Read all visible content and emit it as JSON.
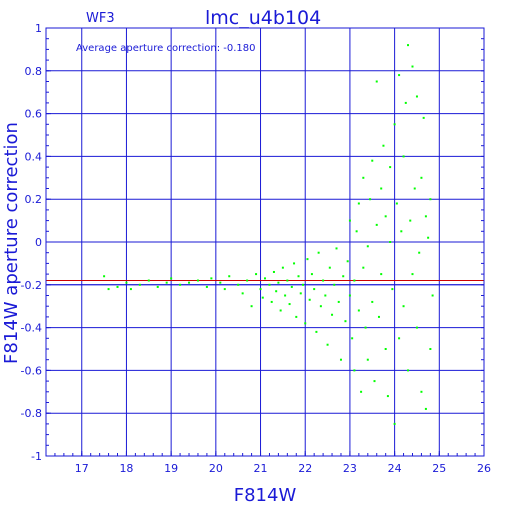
{
  "chart_data": {
    "type": "scatter",
    "title": "lmc_u4b104",
    "chip_label": "WF3",
    "annotation": "Average aperture correction:  -0.180",
    "xlabel": "F814W",
    "ylabel": "F814W aperture correction",
    "xlim": [
      16.2,
      26
    ],
    "ylim": [
      -1,
      1
    ],
    "xticks": [
      "17",
      "18",
      "19",
      "20",
      "21",
      "22",
      "23",
      "24",
      "25",
      "26"
    ],
    "yticks": [
      "-1",
      "-0.8",
      "-0.6",
      "-0.4",
      "-0.2",
      "0",
      "0.2",
      "0.4",
      "0.6",
      "0.8",
      "1"
    ],
    "grid": true,
    "reference_lines": [
      {
        "y": -0.18,
        "color": "#cc0000"
      },
      {
        "y": -0.2,
        "color": "#1a1ad6"
      }
    ],
    "colors": {
      "axis": "#1a1ad6",
      "points": "#00ff00",
      "average_line": "#cc0000"
    },
    "series": [
      {
        "points": [
          [
            17.5,
            -0.16
          ],
          [
            17.6,
            -0.22
          ],
          [
            17.8,
            -0.21
          ],
          [
            18.0,
            -0.19
          ],
          [
            18.1,
            -0.22
          ],
          [
            18.3,
            -0.2
          ],
          [
            18.5,
            -0.18
          ],
          [
            18.7,
            -0.21
          ],
          [
            18.9,
            -0.19
          ],
          [
            19.0,
            -0.17
          ],
          [
            19.2,
            -0.2
          ],
          [
            19.4,
            -0.19
          ],
          [
            19.6,
            -0.18
          ],
          [
            19.8,
            -0.21
          ],
          [
            19.9,
            -0.17
          ],
          [
            20.1,
            -0.19
          ],
          [
            20.2,
            -0.22
          ],
          [
            20.3,
            -0.16
          ],
          [
            20.5,
            -0.2
          ],
          [
            20.6,
            -0.24
          ],
          [
            20.7,
            -0.18
          ],
          [
            20.8,
            -0.3
          ],
          [
            20.9,
            -0.15
          ],
          [
            21.0,
            -0.22
          ],
          [
            21.05,
            -0.26
          ],
          [
            21.1,
            -0.17
          ],
          [
            21.2,
            -0.2
          ],
          [
            21.25,
            -0.28
          ],
          [
            21.3,
            -0.14
          ],
          [
            21.35,
            -0.23
          ],
          [
            21.4,
            -0.19
          ],
          [
            21.45,
            -0.32
          ],
          [
            21.5,
            -0.12
          ],
          [
            21.55,
            -0.25
          ],
          [
            21.6,
            -0.18
          ],
          [
            21.65,
            -0.29
          ],
          [
            21.7,
            -0.21
          ],
          [
            21.75,
            -0.1
          ],
          [
            21.8,
            -0.35
          ],
          [
            21.85,
            -0.16
          ],
          [
            21.9,
            -0.24
          ],
          [
            21.95,
            -0.2
          ],
          [
            22.0,
            -0.38
          ],
          [
            22.05,
            -0.08
          ],
          [
            22.1,
            -0.27
          ],
          [
            22.15,
            -0.15
          ],
          [
            22.2,
            -0.22
          ],
          [
            22.25,
            -0.42
          ],
          [
            22.3,
            -0.05
          ],
          [
            22.35,
            -0.3
          ],
          [
            22.4,
            -0.18
          ],
          [
            22.45,
            -0.25
          ],
          [
            22.5,
            -0.48
          ],
          [
            22.55,
            -0.12
          ],
          [
            22.6,
            -0.34
          ],
          [
            22.65,
            -0.2
          ],
          [
            22.7,
            -0.03
          ],
          [
            22.75,
            -0.28
          ],
          [
            22.8,
            -0.55
          ],
          [
            22.85,
            -0.16
          ],
          [
            22.9,
            -0.37
          ],
          [
            22.95,
            -0.09
          ],
          [
            23.0,
            -0.25
          ],
          [
            23.0,
            0.1
          ],
          [
            23.05,
            -0.45
          ],
          [
            23.1,
            -0.6
          ],
          [
            23.1,
            -0.18
          ],
          [
            23.15,
            0.05
          ],
          [
            23.2,
            -0.32
          ],
          [
            23.2,
            0.18
          ],
          [
            23.25,
            -0.7
          ],
          [
            23.3,
            -0.12
          ],
          [
            23.3,
            0.3
          ],
          [
            23.35,
            -0.4
          ],
          [
            23.4,
            -0.02
          ],
          [
            23.4,
            -0.55
          ],
          [
            23.45,
            0.2
          ],
          [
            23.5,
            -0.28
          ],
          [
            23.5,
            0.38
          ],
          [
            23.55,
            -0.65
          ],
          [
            23.6,
            0.08
          ],
          [
            23.6,
            0.75
          ],
          [
            23.65,
            -0.35
          ],
          [
            23.7,
            0.25
          ],
          [
            23.7,
            -0.15
          ],
          [
            23.75,
            0.45
          ],
          [
            23.8,
            -0.5
          ],
          [
            23.8,
            0.12
          ],
          [
            23.85,
            -0.72
          ],
          [
            23.9,
            0.0
          ],
          [
            23.9,
            0.35
          ],
          [
            23.95,
            -0.22
          ],
          [
            24.0,
            0.55
          ],
          [
            24.0,
            -0.85
          ],
          [
            24.05,
            0.18
          ],
          [
            24.1,
            -0.45
          ],
          [
            24.1,
            0.78
          ],
          [
            24.15,
            0.05
          ],
          [
            24.2,
            -0.3
          ],
          [
            24.2,
            0.4
          ],
          [
            24.25,
            0.65
          ],
          [
            24.3,
            -0.6
          ],
          [
            24.3,
            0.92
          ],
          [
            24.35,
            0.1
          ],
          [
            24.4,
            -0.15
          ],
          [
            24.4,
            0.82
          ],
          [
            24.45,
            0.25
          ],
          [
            24.5,
            -0.4
          ],
          [
            24.5,
            0.68
          ],
          [
            24.55,
            -0.05
          ],
          [
            24.6,
            0.3
          ],
          [
            24.6,
            -0.7
          ],
          [
            24.65,
            0.58
          ],
          [
            24.7,
            -0.78
          ],
          [
            24.7,
            0.12
          ],
          [
            24.75,
            0.02
          ],
          [
            24.8,
            -0.5
          ],
          [
            24.8,
            0.2
          ],
          [
            24.85,
            -0.25
          ]
        ]
      }
    ]
  }
}
